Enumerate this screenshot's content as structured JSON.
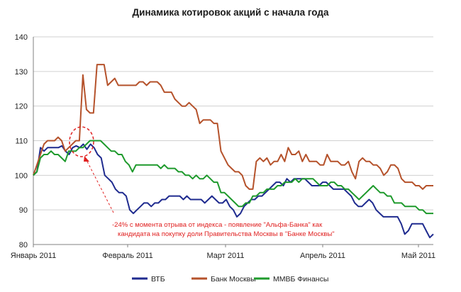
{
  "chart_data": {
    "type": "line",
    "title": "Динамика котировок акций с начала года",
    "xlabel": "",
    "ylabel": "",
    "ylim": [
      80,
      140
    ],
    "yticks": [
      "80",
      "90",
      "100",
      "110",
      "120",
      "130",
      "140"
    ],
    "x_ticks": [
      "Январь 2011",
      "Февраль 2011",
      "Март 2011",
      "Апрель 2011",
      "Май 2011"
    ],
    "grid": true,
    "legend_position": "bottom",
    "annotation": {
      "line1": "-24% с момента отрыва от индекса - появление \"Альфа-Банка\" как",
      "line2": "кандидата на покупку доли Правительства Москвы в \"Банке Москвы\""
    },
    "series": [
      {
        "name": "ВТБ",
        "color": "#1f2b8f",
        "values": [
          100,
          101,
          108,
          107,
          108,
          108,
          108,
          108,
          108.5,
          107,
          106,
          108,
          108.5,
          108,
          109,
          107.5,
          109,
          108,
          106,
          105,
          100,
          99,
          98,
          96,
          95,
          95,
          94,
          90,
          89,
          90,
          91,
          92,
          92,
          91,
          92,
          92,
          93,
          93,
          94,
          94,
          94,
          94,
          93,
          94,
          93,
          93,
          93,
          93,
          92,
          93,
          94,
          93,
          92,
          92,
          93,
          91,
          90,
          88,
          89,
          91,
          92,
          93,
          93,
          94,
          94,
          95,
          96,
          97,
          98,
          98,
          97,
          99,
          98,
          99,
          99,
          99,
          99,
          98,
          97,
          97,
          97,
          98,
          98,
          97,
          96,
          96,
          96,
          96,
          95,
          94,
          92,
          91,
          91,
          92,
          93,
          92,
          90,
          89,
          88,
          88,
          88,
          88,
          88,
          86,
          83,
          84,
          86,
          86,
          86,
          86,
          84,
          82,
          83
        ]
      },
      {
        "name": "Банк Москвы",
        "color": "#b5522b",
        "values": [
          100,
          103,
          106,
          109,
          110,
          110,
          110,
          111,
          110,
          107,
          108,
          109,
          110,
          110,
          129,
          119,
          118,
          118,
          132,
          132,
          132,
          126,
          127,
          128,
          126,
          126,
          126,
          126,
          126,
          126,
          127,
          127,
          126,
          127,
          127,
          127,
          126,
          124,
          124,
          124,
          122,
          121,
          120,
          120,
          121,
          120,
          119,
          115,
          116,
          116,
          116,
          115,
          115,
          107,
          105,
          103,
          102,
          101,
          101,
          100,
          97,
          96,
          96,
          104,
          105,
          104,
          105,
          103,
          104,
          104,
          106,
          104,
          108,
          106,
          106,
          107,
          104,
          106,
          104,
          104,
          104,
          103,
          103,
          106,
          104,
          104,
          104,
          103,
          103,
          104,
          101,
          99,
          104,
          105,
          104,
          104,
          103,
          103,
          102,
          100,
          101,
          103,
          103,
          102,
          99,
          98,
          98,
          98,
          97,
          97,
          96,
          97,
          97,
          97
        ]
      },
      {
        "name": "ММВБ Финансы",
        "color": "#1e9a2c",
        "values": [
          100,
          101,
          105,
          106,
          106,
          107,
          106,
          106,
          105,
          104,
          107,
          107,
          107,
          108,
          108,
          109,
          110,
          110,
          110,
          110,
          109,
          108,
          107,
          107,
          106,
          106,
          104,
          103,
          101,
          103,
          103,
          103,
          103,
          103,
          103,
          103,
          102,
          103,
          102,
          102,
          102,
          101,
          101,
          100,
          100,
          99,
          100,
          99,
          99,
          100,
          99,
          98,
          98,
          95,
          95,
          94,
          93,
          92,
          91,
          91,
          92,
          92,
          94,
          94,
          95,
          95,
          96,
          96,
          96,
          97,
          97,
          98,
          98,
          98,
          99,
          98,
          99,
          99,
          99,
          99,
          98,
          97,
          97,
          97,
          98,
          98,
          97,
          97,
          96,
          96,
          95,
          94,
          93,
          94,
          95,
          96,
          97,
          96,
          95,
          95,
          94,
          94,
          92,
          92,
          92,
          91,
          91,
          91,
          91,
          90,
          90,
          89,
          89,
          89
        ]
      }
    ]
  }
}
